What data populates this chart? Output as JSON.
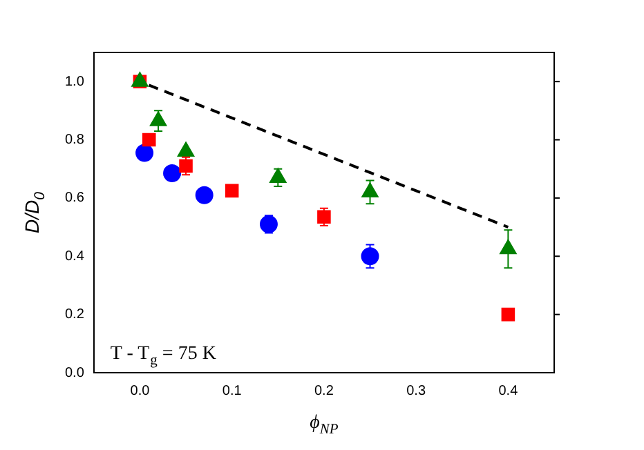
{
  "chart_data": {
    "type": "scatter",
    "xlabel": "ϕ$_{NP}$",
    "ylabel": "D/D$_{0}$",
    "annotations": [
      "T - T$_{g}$ = 75 K"
    ],
    "xlim": [
      -0.05,
      0.45
    ],
    "ylim": [
      0,
      1.1
    ],
    "xticks": [
      {
        "value": 0,
        "label": "0.0"
      },
      {
        "value": 0.1,
        "label": "0.1"
      },
      {
        "value": 0.2,
        "label": "0.2"
      },
      {
        "value": 0.3,
        "label": "0.3"
      },
      {
        "value": 0.4,
        "label": "0.4"
      }
    ],
    "yticks": [
      {
        "value": 0,
        "label": "0.0"
      },
      {
        "value": 0.2,
        "label": "0.2"
      },
      {
        "value": 0.4,
        "label": "0.4"
      },
      {
        "value": 0.6,
        "label": "0.6"
      },
      {
        "value": 0.8,
        "label": "0.8"
      },
      {
        "value": 1,
        "label": "1.0"
      }
    ],
    "grid": false,
    "legend": false,
    "series": [
      {
        "type": "line",
        "color": "#000000",
        "line_style": "dashed",
        "marker": "none",
        "x": [
          0,
          0.4
        ],
        "values": [
          1.0,
          0.5
        ]
      },
      {
        "color": "#0000ff",
        "marker": "circle",
        "x": [
          0.005,
          0.035,
          0.07,
          0.14,
          0.25
        ],
        "values": [
          0.755,
          0.685,
          0.61,
          0.51,
          0.4
        ],
        "errors": [
          null,
          null,
          null,
          0.03,
          0.04
        ]
      },
      {
        "color": "#ff0000",
        "marker": "square",
        "x": [
          0,
          0.01,
          0.05,
          0.1,
          0.2,
          0.4
        ],
        "values": [
          1.0,
          0.8,
          0.71,
          0.625,
          0.535,
          0.2
        ],
        "errors": [
          null,
          null,
          0.03,
          null,
          0.03,
          null
        ]
      },
      {
        "color": "#008000",
        "marker": "triangle",
        "x": [
          0,
          0.02,
          0.05,
          0.15,
          0.25,
          0.4
        ],
        "values": [
          1.0,
          0.865,
          0.76,
          0.67,
          0.62,
          0.425
        ],
        "errors": [
          null,
          0.035,
          null,
          0.03,
          0.04,
          [
            0.36,
            0.49
          ]
        ]
      }
    ]
  }
}
